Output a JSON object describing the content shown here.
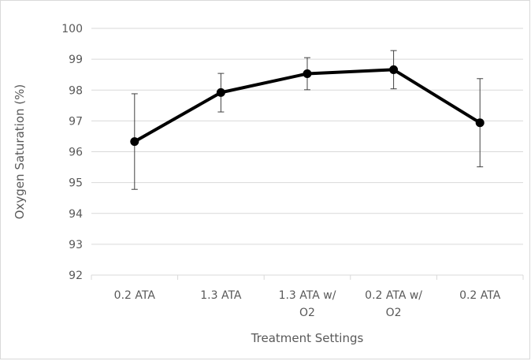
{
  "chart_data": {
    "type": "line",
    "title": "",
    "xlabel": "Treatment Settings",
    "ylabel": "Oxygen Saturation (%)",
    "categories": [
      [
        "0.2 ATA"
      ],
      [
        "1.3 ATA"
      ],
      [
        "1.3 ATA w/",
        "O2"
      ],
      [
        "0.2 ATA w/",
        "O2"
      ],
      [
        "0.2 ATA"
      ]
    ],
    "series": [
      {
        "values": [
          96.33,
          97.92,
          98.53,
          98.66,
          96.94
        ],
        "error_low": [
          94.78,
          97.29,
          98.01,
          98.04,
          95.51
        ],
        "error_high": [
          97.88,
          98.54,
          99.05,
          99.28,
          98.37
        ]
      }
    ],
    "ylim": [
      92,
      100
    ],
    "yticks": [
      92,
      93,
      94,
      95,
      96,
      97,
      98,
      99,
      100
    ],
    "grid": true,
    "legend": "none",
    "colors": {
      "line": "#000000",
      "marker": "#000000",
      "error_bar": "#404040",
      "grid": "#d9d9d9",
      "text": "#595959"
    }
  }
}
